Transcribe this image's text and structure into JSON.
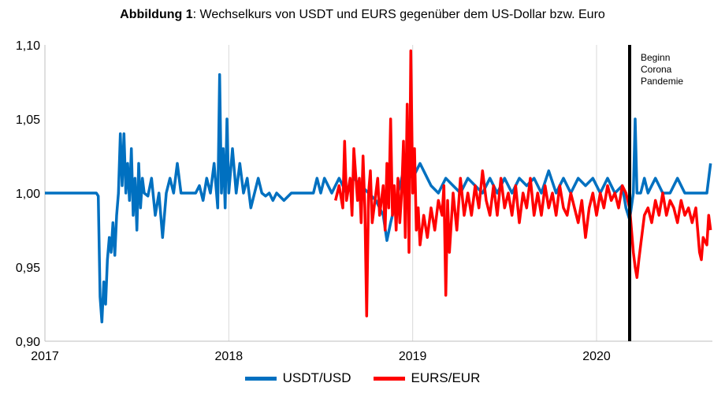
{
  "chart_data": {
    "type": "line",
    "title_bold": "Abbildung 1",
    "title_rest": ": Wechselkurs von USDT und EURS gegenüber dem US-Dollar bzw. Euro",
    "xlabel": "",
    "ylabel": "",
    "x_ticks": [
      "2017",
      "2018",
      "2019",
      "2020"
    ],
    "y_ticks": [
      "0,90",
      "0,95",
      "1,00",
      "1,05",
      "1,10"
    ],
    "xlim": [
      2017.0,
      2020.63
    ],
    "ylim": [
      0.9,
      1.1
    ],
    "grid": "vertical",
    "legend_position": "bottom",
    "annotation": {
      "x": 2020.18,
      "lines": [
        "Beginn",
        "Corona",
        "Pandemie"
      ]
    },
    "series": [
      {
        "name": "USDT/USD",
        "color": "#0070C0",
        "points": [
          [
            2017.0,
            1.0
          ],
          [
            2017.2,
            1.0
          ],
          [
            2017.28,
            1.0
          ],
          [
            2017.29,
            0.998
          ],
          [
            2017.3,
            0.93
          ],
          [
            2017.31,
            0.913
          ],
          [
            2017.32,
            0.94
          ],
          [
            2017.33,
            0.925
          ],
          [
            2017.34,
            0.955
          ],
          [
            2017.35,
            0.97
          ],
          [
            2017.36,
            0.96
          ],
          [
            2017.37,
            0.98
          ],
          [
            2017.38,
            0.958
          ],
          [
            2017.39,
            0.985
          ],
          [
            2017.4,
            1.0
          ],
          [
            2017.41,
            1.04
          ],
          [
            2017.42,
            1.005
          ],
          [
            2017.43,
            1.04
          ],
          [
            2017.44,
            1.0
          ],
          [
            2017.45,
            1.02
          ],
          [
            2017.46,
            0.995
          ],
          [
            2017.47,
            1.03
          ],
          [
            2017.48,
            0.985
          ],
          [
            2017.49,
            1.01
          ],
          [
            2017.5,
            0.975
          ],
          [
            2017.51,
            1.02
          ],
          [
            2017.52,
            0.99
          ],
          [
            2017.53,
            1.01
          ],
          [
            2017.54,
            1.0
          ],
          [
            2017.56,
            0.998
          ],
          [
            2017.58,
            1.01
          ],
          [
            2017.6,
            0.985
          ],
          [
            2017.62,
            1.0
          ],
          [
            2017.64,
            0.97
          ],
          [
            2017.66,
            1.0
          ],
          [
            2017.68,
            1.01
          ],
          [
            2017.7,
            1.0
          ],
          [
            2017.72,
            1.02
          ],
          [
            2017.74,
            1.0
          ],
          [
            2017.76,
            1.0
          ],
          [
            2017.78,
            1.0
          ],
          [
            2017.8,
            1.0
          ],
          [
            2017.82,
            1.0
          ],
          [
            2017.84,
            1.005
          ],
          [
            2017.86,
            0.995
          ],
          [
            2017.88,
            1.01
          ],
          [
            2017.9,
            1.0
          ],
          [
            2017.92,
            1.02
          ],
          [
            2017.94,
            0.99
          ],
          [
            2017.95,
            1.08
          ],
          [
            2017.96,
            1.0
          ],
          [
            2017.97,
            1.03
          ],
          [
            2017.98,
            0.99
          ],
          [
            2017.99,
            1.05
          ],
          [
            2018.0,
            1.0
          ],
          [
            2018.02,
            1.03
          ],
          [
            2018.04,
            1.0
          ],
          [
            2018.06,
            1.02
          ],
          [
            2018.08,
            1.0
          ],
          [
            2018.1,
            1.01
          ],
          [
            2018.12,
            0.99
          ],
          [
            2018.14,
            1.0
          ],
          [
            2018.16,
            1.01
          ],
          [
            2018.18,
            1.0
          ],
          [
            2018.2,
            0.998
          ],
          [
            2018.22,
            1.0
          ],
          [
            2018.24,
            0.995
          ],
          [
            2018.26,
            1.0
          ],
          [
            2018.3,
            0.995
          ],
          [
            2018.34,
            1.0
          ],
          [
            2018.38,
            1.0
          ],
          [
            2018.42,
            1.0
          ],
          [
            2018.46,
            1.0
          ],
          [
            2018.48,
            1.01
          ],
          [
            2018.5,
            1.0
          ],
          [
            2018.52,
            1.01
          ],
          [
            2018.56,
            1.0
          ],
          [
            2018.6,
            1.01
          ],
          [
            2018.64,
            1.0
          ],
          [
            2018.68,
            1.01
          ],
          [
            2018.72,
            1.005
          ],
          [
            2018.76,
            1.0
          ],
          [
            2018.8,
            0.995
          ],
          [
            2018.84,
            0.985
          ],
          [
            2018.86,
            0.968
          ],
          [
            2018.88,
            0.98
          ],
          [
            2018.9,
            0.99
          ],
          [
            2018.92,
            1.0
          ],
          [
            2018.94,
            1.01
          ],
          [
            2018.96,
            1.02
          ],
          [
            2019.0,
            1.01
          ],
          [
            2019.04,
            1.02
          ],
          [
            2019.08,
            1.01
          ],
          [
            2019.1,
            1.005
          ],
          [
            2019.14,
            1.0
          ],
          [
            2019.18,
            1.01
          ],
          [
            2019.22,
            1.005
          ],
          [
            2019.26,
            1.0
          ],
          [
            2019.3,
            1.01
          ],
          [
            2019.34,
            1.005
          ],
          [
            2019.38,
            1.0
          ],
          [
            2019.42,
            1.01
          ],
          [
            2019.46,
            1.0
          ],
          [
            2019.5,
            1.01
          ],
          [
            2019.54,
            1.0
          ],
          [
            2019.58,
            1.01
          ],
          [
            2019.62,
            1.005
          ],
          [
            2019.66,
            1.01
          ],
          [
            2019.7,
            1.0
          ],
          [
            2019.74,
            1.015
          ],
          [
            2019.78,
            1.0
          ],
          [
            2019.82,
            1.01
          ],
          [
            2019.86,
            1.0
          ],
          [
            2019.9,
            1.01
          ],
          [
            2019.94,
            1.005
          ],
          [
            2019.98,
            1.01
          ],
          [
            2020.02,
            1.0
          ],
          [
            2020.06,
            1.01
          ],
          [
            2020.1,
            1.0
          ],
          [
            2020.14,
            1.005
          ],
          [
            2020.16,
            0.99
          ],
          [
            2020.18,
            0.982
          ],
          [
            2020.2,
            1.0
          ],
          [
            2020.21,
            1.05
          ],
          [
            2020.22,
            1.0
          ],
          [
            2020.24,
            1.0
          ],
          [
            2020.26,
            1.01
          ],
          [
            2020.28,
            1.0
          ],
          [
            2020.32,
            1.01
          ],
          [
            2020.36,
            1.0
          ],
          [
            2020.4,
            1.0
          ],
          [
            2020.44,
            1.01
          ],
          [
            2020.48,
            1.0
          ],
          [
            2020.52,
            1.0
          ],
          [
            2020.56,
            1.0
          ],
          [
            2020.6,
            1.0
          ],
          [
            2020.62,
            1.02
          ]
        ]
      },
      {
        "name": "EURS/EUR",
        "color": "#FF0000",
        "points": [
          [
            2018.58,
            0.995
          ],
          [
            2018.6,
            1.005
          ],
          [
            2018.62,
            0.99
          ],
          [
            2018.63,
            1.035
          ],
          [
            2018.64,
            0.995
          ],
          [
            2018.66,
            1.01
          ],
          [
            2018.67,
            0.985
          ],
          [
            2018.68,
            1.03
          ],
          [
            2018.7,
            0.995
          ],
          [
            2018.71,
            1.01
          ],
          [
            2018.72,
            0.98
          ],
          [
            2018.73,
            1.025
          ],
          [
            2018.74,
            0.99
          ],
          [
            2018.75,
            0.917
          ],
          [
            2018.76,
            1.0
          ],
          [
            2018.77,
            1.015
          ],
          [
            2018.78,
            0.98
          ],
          [
            2018.8,
            1.0
          ],
          [
            2018.81,
            1.01
          ],
          [
            2018.82,
            0.985
          ],
          [
            2018.84,
            1.005
          ],
          [
            2018.85,
            0.975
          ],
          [
            2018.86,
            1.02
          ],
          [
            2018.87,
            0.99
          ],
          [
            2018.88,
            1.05
          ],
          [
            2018.89,
            0.985
          ],
          [
            2018.9,
            1.005
          ],
          [
            2018.91,
            0.975
          ],
          [
            2018.92,
            1.01
          ],
          [
            2018.93,
            0.98
          ],
          [
            2018.94,
            1.0
          ],
          [
            2018.95,
            1.035
          ],
          [
            2018.96,
            0.97
          ],
          [
            2018.97,
            1.06
          ],
          [
            2018.98,
            0.96
          ],
          [
            2018.99,
            1.096
          ],
          [
            2019.0,
            1.0
          ],
          [
            2019.01,
            1.03
          ],
          [
            2019.02,
            0.975
          ],
          [
            2019.03,
            0.99
          ],
          [
            2019.04,
            0.965
          ],
          [
            2019.06,
            0.985
          ],
          [
            2019.08,
            0.97
          ],
          [
            2019.1,
            0.99
          ],
          [
            2019.12,
            0.975
          ],
          [
            2019.14,
            0.995
          ],
          [
            2019.16,
            0.985
          ],
          [
            2019.17,
            1.005
          ],
          [
            2019.18,
            0.931
          ],
          [
            2019.19,
            0.995
          ],
          [
            2019.2,
            0.96
          ],
          [
            2019.22,
            1.0
          ],
          [
            2019.24,
            0.975
          ],
          [
            2019.26,
            1.01
          ],
          [
            2019.28,
            0.985
          ],
          [
            2019.3,
            1.0
          ],
          [
            2019.32,
            0.985
          ],
          [
            2019.34,
            1.005
          ],
          [
            2019.36,
            0.99
          ],
          [
            2019.38,
            1.015
          ],
          [
            2019.4,
            0.995
          ],
          [
            2019.42,
            0.985
          ],
          [
            2019.44,
            1.005
          ],
          [
            2019.46,
            0.985
          ],
          [
            2019.48,
            1.01
          ],
          [
            2019.5,
            0.99
          ],
          [
            2019.52,
            1.0
          ],
          [
            2019.54,
            0.985
          ],
          [
            2019.56,
            1.005
          ],
          [
            2019.58,
            0.98
          ],
          [
            2019.6,
            1.0
          ],
          [
            2019.62,
            0.99
          ],
          [
            2019.64,
            1.01
          ],
          [
            2019.66,
            0.985
          ],
          [
            2019.68,
            1.0
          ],
          [
            2019.7,
            0.985
          ],
          [
            2019.72,
            1.005
          ],
          [
            2019.74,
            0.99
          ],
          [
            2019.76,
            1.0
          ],
          [
            2019.78,
            0.985
          ],
          [
            2019.8,
            1.005
          ],
          [
            2019.82,
            0.99
          ],
          [
            2019.84,
            0.985
          ],
          [
            2019.86,
            1.0
          ],
          [
            2019.88,
            0.99
          ],
          [
            2019.9,
            0.98
          ],
          [
            2019.92,
            0.995
          ],
          [
            2019.94,
            0.97
          ],
          [
            2019.96,
            0.99
          ],
          [
            2019.98,
            1.0
          ],
          [
            2020.0,
            0.985
          ],
          [
            2020.02,
            1.0
          ],
          [
            2020.04,
            0.99
          ],
          [
            2020.06,
            1.005
          ],
          [
            2020.08,
            0.995
          ],
          [
            2020.1,
            1.0
          ],
          [
            2020.12,
            0.99
          ],
          [
            2020.14,
            1.005
          ],
          [
            2020.16,
            1.0
          ],
          [
            2020.18,
            0.99
          ],
          [
            2020.2,
            0.96
          ],
          [
            2020.21,
            0.95
          ],
          [
            2020.22,
            0.943
          ],
          [
            2020.23,
            0.955
          ],
          [
            2020.24,
            0.965
          ],
          [
            2020.26,
            0.985
          ],
          [
            2020.28,
            0.99
          ],
          [
            2020.3,
            0.98
          ],
          [
            2020.32,
            0.995
          ],
          [
            2020.34,
            0.985
          ],
          [
            2020.36,
            1.0
          ],
          [
            2020.38,
            0.985
          ],
          [
            2020.4,
            0.995
          ],
          [
            2020.42,
            0.99
          ],
          [
            2020.44,
            0.98
          ],
          [
            2020.46,
            0.995
          ],
          [
            2020.48,
            0.985
          ],
          [
            2020.5,
            0.99
          ],
          [
            2020.52,
            0.98
          ],
          [
            2020.54,
            0.99
          ],
          [
            2020.56,
            0.96
          ],
          [
            2020.57,
            0.955
          ],
          [
            2020.58,
            0.97
          ],
          [
            2020.6,
            0.965
          ],
          [
            2020.61,
            0.985
          ],
          [
            2020.62,
            0.975
          ]
        ]
      }
    ]
  }
}
